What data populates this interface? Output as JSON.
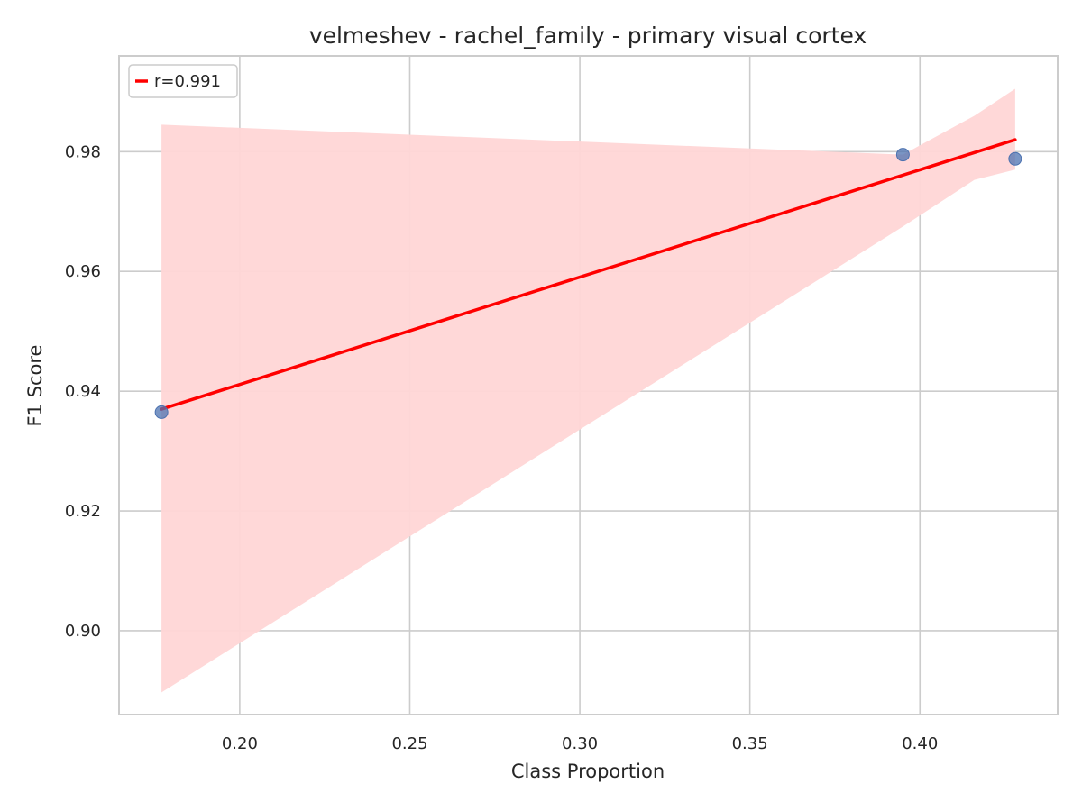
{
  "chart_data": {
    "type": "scatter",
    "title": "velmeshev - rachel_family - primary visual cortex",
    "xlabel": "Class Proportion",
    "ylabel": "F1 Score",
    "xlim": [
      0.1645,
      0.4405
    ],
    "ylim": [
      0.886,
      0.996
    ],
    "xticks": [
      0.2,
      0.25,
      0.3,
      0.35,
      0.4
    ],
    "xtick_labels": [
      "0.20",
      "0.25",
      "0.30",
      "0.35",
      "0.40"
    ],
    "yticks": [
      0.9,
      0.92,
      0.94,
      0.96,
      0.98
    ],
    "ytick_labels": [
      "0.90",
      "0.92",
      "0.94",
      "0.96",
      "0.98"
    ],
    "grid": true,
    "legend": {
      "position": "top-left",
      "entries": [
        "r=0.991"
      ]
    },
    "points": [
      {
        "x": 0.177,
        "y": 0.9365
      },
      {
        "x": 0.395,
        "y": 0.9795
      },
      {
        "x": 0.428,
        "y": 0.9788
      }
    ],
    "regression_line": {
      "label": "r=0.991",
      "x": [
        0.177,
        0.428
      ],
      "y": [
        0.937,
        0.982
      ]
    },
    "confidence_band": {
      "x": [
        0.177,
        0.395,
        0.416,
        0.428
      ],
      "upper": [
        0.9845,
        0.9795,
        0.986,
        0.9905
      ],
      "lower": [
        0.8897,
        0.9675,
        0.9753,
        0.977
      ]
    },
    "colors": {
      "points": "#4c72b0",
      "line": "#ff0000",
      "band": "#ffd6d6",
      "grid": "#cccccc",
      "frame": "#cccccc",
      "text": "#262626"
    }
  }
}
